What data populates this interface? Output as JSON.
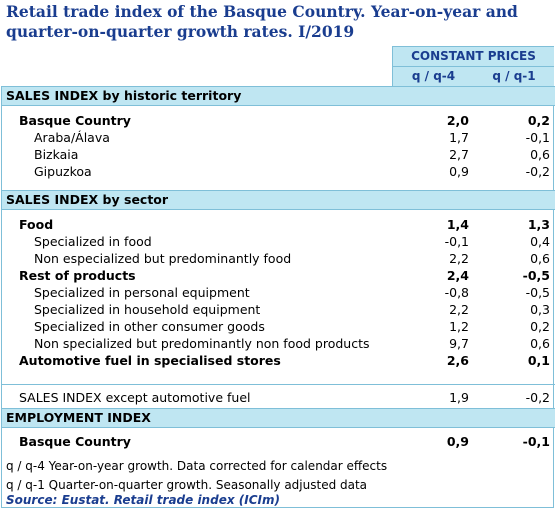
{
  "title_line1": "Retail trade index of the Basque Country. Year-on-year and",
  "title_line2": "quarter-on-quarter growth rates. I/2019",
  "header": {
    "group": "CONSTANT PRICES",
    "col1": "q / q-4",
    "col2": "q / q-1"
  },
  "sections": {
    "territory": "SALES INDEX by historic territory",
    "sector": "SALES INDEX by sector",
    "employment": "EMPLOYMENT INDEX"
  },
  "rows": {
    "basque": {
      "label": "Basque Country",
      "v1": "2,0",
      "v2": "0,2"
    },
    "araba": {
      "label": "Araba/Álava",
      "v1": "1,7",
      "v2": "-0,1"
    },
    "bizkaia": {
      "label": "Bizkaia",
      "v1": "2,7",
      "v2": "0,6"
    },
    "gipuzkoa": {
      "label": "Gipuzkoa",
      "v1": "0,9",
      "v2": "-0,2"
    },
    "food": {
      "label": "Food",
      "v1": "1,4",
      "v2": "1,3"
    },
    "spec_food": {
      "label": "Specialized in food",
      "v1": "-0,1",
      "v2": "0,4"
    },
    "nonspec_food": {
      "label": "Non especialized but predominantly food",
      "v1": "2,2",
      "v2": "0,6"
    },
    "rest": {
      "label": "Rest of products",
      "v1": "2,4",
      "v2": "-0,5"
    },
    "personal": {
      "label": "Specialized in personal equipment",
      "v1": "-0,8",
      "v2": "-0,5"
    },
    "household": {
      "label": "Specialized in household equipment",
      "v1": "2,2",
      "v2": "0,3"
    },
    "other": {
      "label": "Specialized in other consumer goods",
      "v1": "1,2",
      "v2": "0,2"
    },
    "nonfood": {
      "label": "Non specialized but predominantly non food products",
      "v1": "9,7",
      "v2": "0,6"
    },
    "fuel": {
      "label": "Automotive fuel in specialised stores",
      "v1": "2,6",
      "v2": "0,1"
    },
    "except_fuel": {
      "label": "SALES INDEX except automotive fuel",
      "v1": "1,9",
      "v2": "-0,2"
    },
    "emp_basque": {
      "label": "Basque Country",
      "v1": "0,9",
      "v2": "-0,1"
    }
  },
  "notes": {
    "n1": "q / q-4 Year-on-year growth. Data corrected for calendar effects",
    "n2": "q / q-1 Quarter-on-quarter growth. Seasonally adjusted data",
    "source": "Source: Eustat. Retail trade index (ICIm)"
  }
}
